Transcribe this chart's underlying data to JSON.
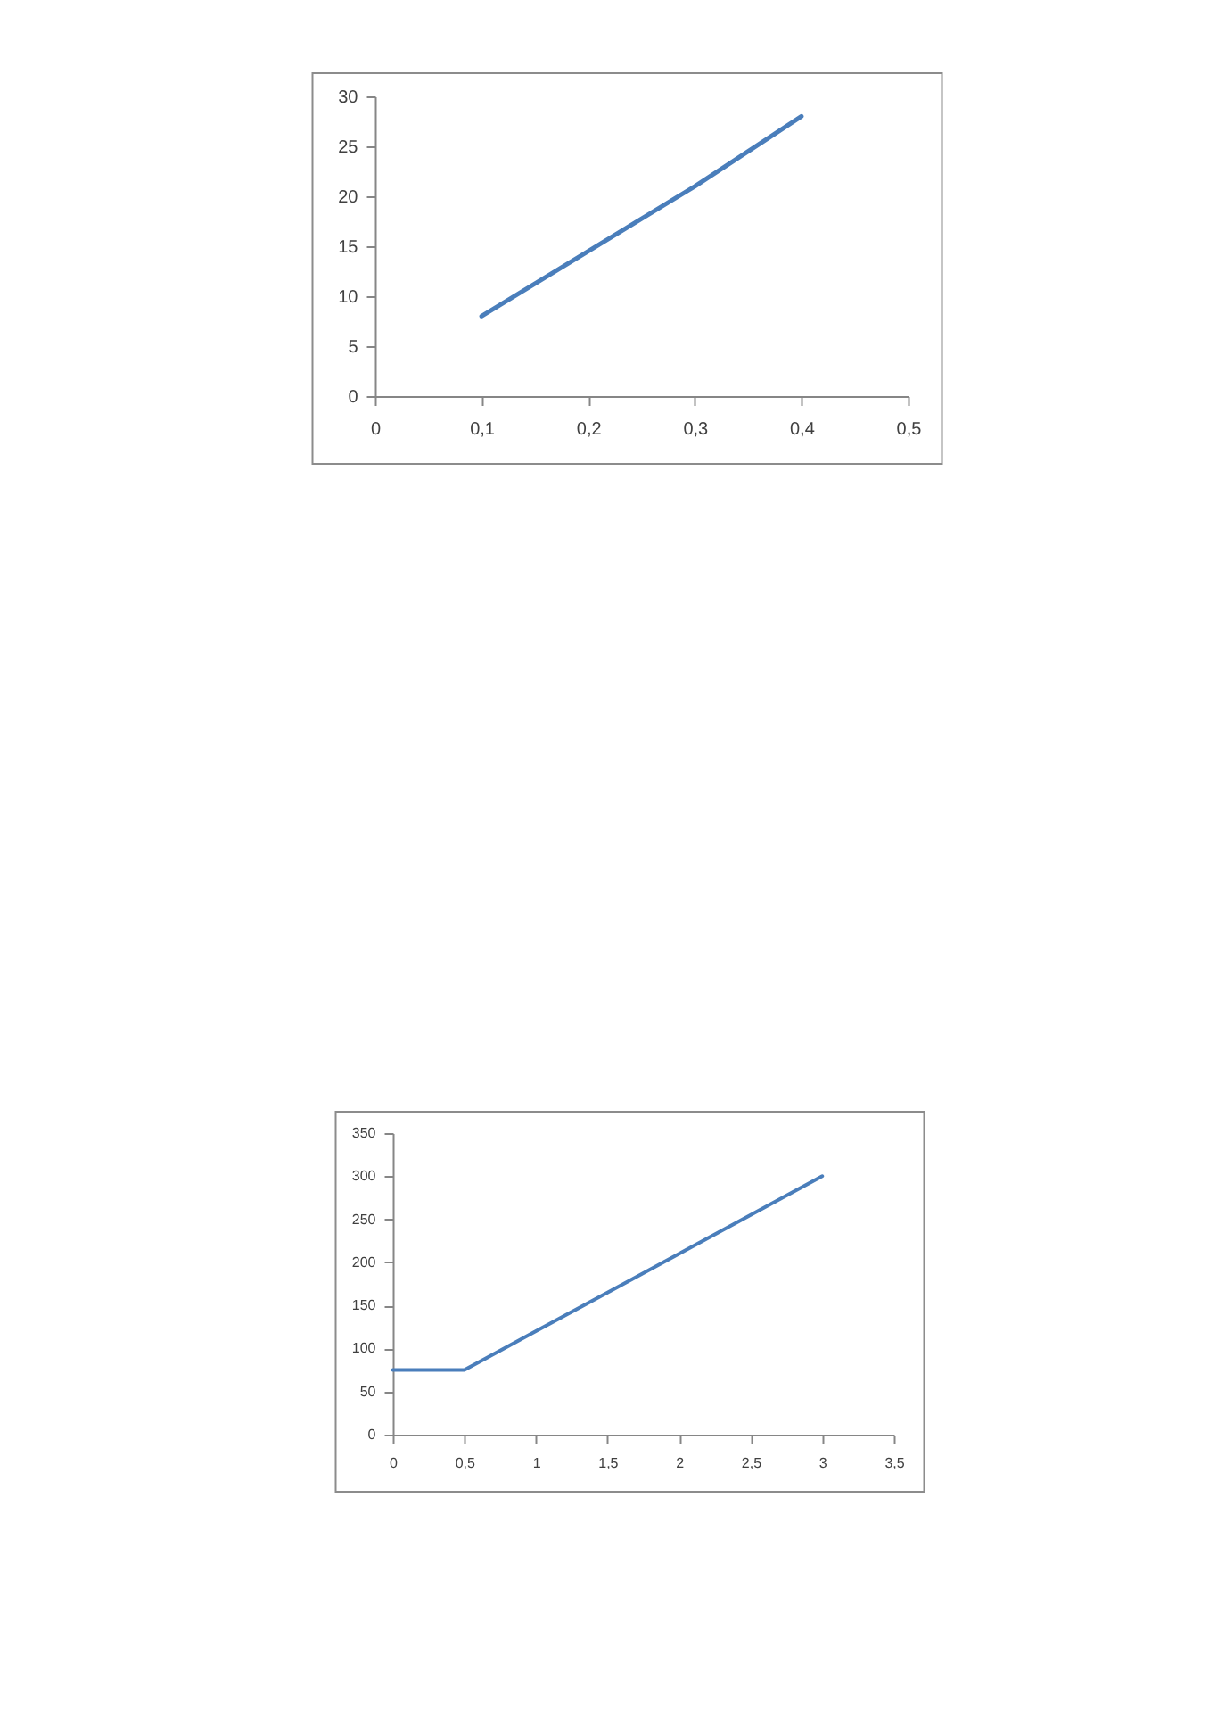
{
  "chart_data": [
    {
      "type": "line",
      "x": [
        0.1,
        0.2,
        0.3,
        0.4
      ],
      "series": [
        {
          "color": "#4a7ebb",
          "values": [
            8,
            14.5,
            21,
            28
          ]
        }
      ],
      "xlim": [
        0,
        0.5
      ],
      "xticks": [
        0,
        {
          "value": 0.1,
          "label": "0,1"
        },
        {
          "value": 0.2,
          "label": "0,2"
        },
        {
          "value": 0.3,
          "label": "0,3"
        },
        {
          "value": 0.4,
          "label": "0,4"
        },
        {
          "value": 0.5,
          "label": "0,5"
        }
      ],
      "ylim": [
        0,
        30
      ],
      "yticks": [
        0,
        5,
        10,
        15,
        20,
        25,
        30
      ],
      "grid": false,
      "line_style": "solid"
    },
    {
      "type": "line",
      "x": [
        0,
        0.5,
        1,
        1.5,
        2,
        2.5,
        3
      ],
      "series": [
        {
          "color": "#4a7ebb",
          "values": [
            75,
            75,
            120,
            165,
            210,
            255,
            300
          ]
        }
      ],
      "xlim": [
        0,
        3.5
      ],
      "xticks": [
        0,
        {
          "value": 0.5,
          "label": "0,5"
        },
        1,
        {
          "value": 1.5,
          "label": "1,5"
        },
        2,
        {
          "value": 2.5,
          "label": "2,5"
        },
        3,
        {
          "value": 3.5,
          "label": "3,5"
        }
      ],
      "ylim": [
        0,
        350
      ],
      "yticks": [
        0,
        50,
        100,
        150,
        200,
        250,
        300,
        350
      ],
      "grid": false,
      "line_style": "solid"
    }
  ]
}
